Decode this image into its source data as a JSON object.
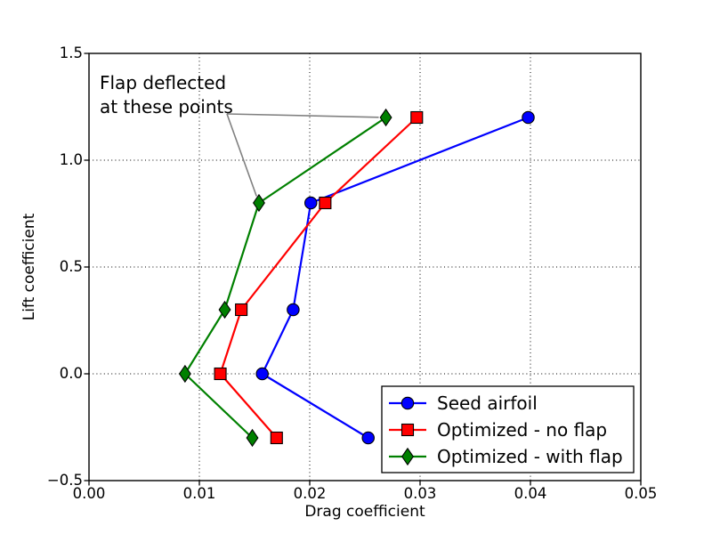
{
  "chart_data": {
    "type": "line",
    "title": "",
    "xlabel": "Drag coefficient",
    "ylabel": "Lift coefficient",
    "xlim": [
      0.0,
      0.05
    ],
    "ylim": [
      -0.5,
      1.5
    ],
    "xticks": [
      0.0,
      0.01,
      0.02,
      0.03,
      0.04,
      0.05
    ],
    "xtick_labels": [
      "0.00",
      "0.01",
      "0.02",
      "0.03",
      "0.04",
      "0.05"
    ],
    "yticks": [
      -0.5,
      0.0,
      0.5,
      1.0,
      1.5
    ],
    "ytick_labels": [
      "−0.5",
      "0.0",
      "0.5",
      "1.0",
      "1.5"
    ],
    "grid": {
      "on": true,
      "style": "dotted",
      "color": "#000000"
    },
    "frame_color": "#000000",
    "background": "#ffffff",
    "legend": {
      "position": "lower right",
      "border_color": "#000000",
      "fill": "#ffffff"
    },
    "series": [
      {
        "name": "Seed airfoil",
        "color": "#0000ff",
        "marker": "circle",
        "x": [
          0.0253,
          0.0157,
          0.0185,
          0.0201,
          0.0398
        ],
        "y": [
          -0.3,
          0.0,
          0.3,
          0.8,
          1.2
        ]
      },
      {
        "name": "Optimized - no flap",
        "color": "#ff0000",
        "marker": "square",
        "x": [
          0.017,
          0.0119,
          0.0138,
          0.0214,
          0.0297
        ],
        "y": [
          -0.3,
          0.0,
          0.3,
          0.8,
          1.2
        ]
      },
      {
        "name": "Optimized - with flap",
        "color": "#008000",
        "marker": "diamond",
        "x": [
          0.0148,
          0.0087,
          0.0123,
          0.0154,
          0.0269
        ],
        "y": [
          -0.3,
          0.0,
          0.3,
          0.8,
          1.2
        ]
      }
    ],
    "annotation": {
      "line1": "Flap deflected",
      "line2": "at these points",
      "text_color": "#000000",
      "leader_color": "#808080",
      "targets": [
        [
          0.0154,
          0.8
        ],
        [
          0.0269,
          1.2
        ]
      ]
    }
  }
}
